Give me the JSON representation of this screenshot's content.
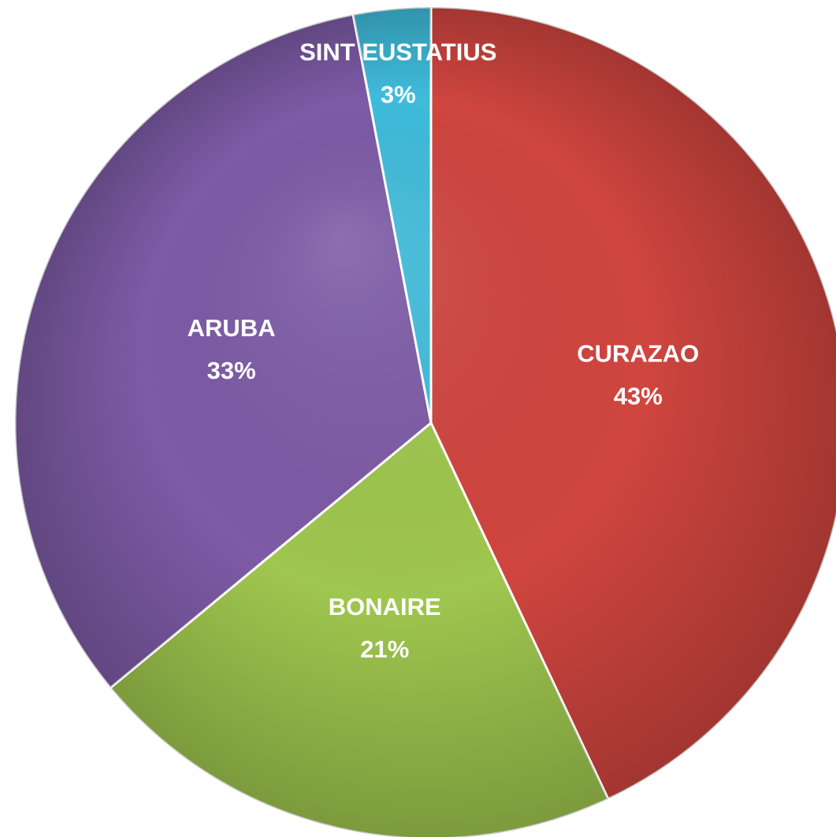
{
  "chart_data": {
    "type": "pie",
    "categories": [
      "CURAZAO",
      "BONAIRE",
      "ARUBA",
      "SINT EUSTATIUS"
    ],
    "values": [
      43,
      21,
      33,
      3
    ],
    "value_labels": [
      "43%",
      "21%",
      "33%",
      "3%"
    ],
    "colors": [
      "#d0453f",
      "#9fc64e",
      "#7d5ba6",
      "#3fbcdb"
    ]
  }
}
